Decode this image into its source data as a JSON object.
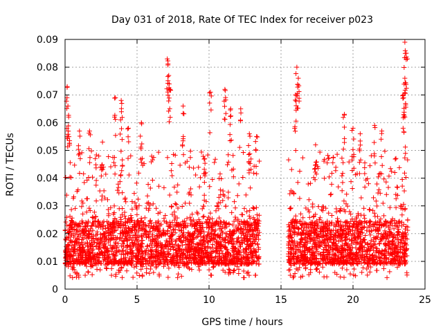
{
  "chart_data": {
    "type": "scatter",
    "title": "Day 031 of 2018, Rate Of TEC Index for receiver p023",
    "xlabel": "GPS time / hours",
    "ylabel": "ROTI / TECUs",
    "xlim": [
      0,
      25
    ],
    "ylim": [
      0,
      0.09
    ],
    "xticks": [
      0,
      5,
      10,
      15,
      20,
      25
    ],
    "xtick_labels": [
      "0",
      "5",
      "10",
      "15",
      "20",
      "25"
    ],
    "yticks": [
      0,
      0.01,
      0.02,
      0.03,
      0.04,
      0.05,
      0.06,
      0.07,
      0.08,
      0.09
    ],
    "ytick_labels": [
      "0",
      "0.01",
      "0.02",
      "0.03",
      "0.04",
      "0.05",
      "0.06",
      "0.07",
      "0.08",
      "0.09"
    ],
    "grid": true,
    "marker": "+",
    "color": "#ff0000",
    "series": [
      {
        "name": "ROTI",
        "segments": [
          [
            0,
            13.5
          ],
          [
            15.5,
            23.8
          ]
        ],
        "typical_range": [
          0.004,
          0.03
        ],
        "peaks": [
          {
            "x": 0.15,
            "y": 0.073
          },
          {
            "x": 0.2,
            "y": 0.066
          },
          {
            "x": 0.25,
            "y": 0.062
          },
          {
            "x": 1.0,
            "y": 0.057
          },
          {
            "x": 1.7,
            "y": 0.057
          },
          {
            "x": 2.6,
            "y": 0.053
          },
          {
            "x": 3.5,
            "y": 0.069
          },
          {
            "x": 3.9,
            "y": 0.068
          },
          {
            "x": 4.4,
            "y": 0.058
          },
          {
            "x": 5.3,
            "y": 0.06
          },
          {
            "x": 7.1,
            "y": 0.083
          },
          {
            "x": 7.2,
            "y": 0.077
          },
          {
            "x": 7.3,
            "y": 0.072
          },
          {
            "x": 8.2,
            "y": 0.066
          },
          {
            "x": 9.7,
            "y": 0.047
          },
          {
            "x": 10.1,
            "y": 0.071
          },
          {
            "x": 11.1,
            "y": 0.072
          },
          {
            "x": 11.5,
            "y": 0.065
          },
          {
            "x": 12.2,
            "y": 0.065
          },
          {
            "x": 12.8,
            "y": 0.056
          },
          {
            "x": 13.3,
            "y": 0.055
          },
          {
            "x": 16.1,
            "y": 0.08
          },
          {
            "x": 16.2,
            "y": 0.076
          },
          {
            "x": 16.0,
            "y": 0.07
          },
          {
            "x": 17.4,
            "y": 0.052
          },
          {
            "x": 19.4,
            "y": 0.063
          },
          {
            "x": 20.0,
            "y": 0.058
          },
          {
            "x": 20.5,
            "y": 0.056
          },
          {
            "x": 21.5,
            "y": 0.059
          },
          {
            "x": 22.0,
            "y": 0.057
          },
          {
            "x": 23.6,
            "y": 0.089
          },
          {
            "x": 23.7,
            "y": 0.085
          },
          {
            "x": 23.6,
            "y": 0.076
          },
          {
            "x": 23.5,
            "y": 0.07
          },
          {
            "x": 23.6,
            "y": 0.062
          }
        ]
      }
    ]
  }
}
